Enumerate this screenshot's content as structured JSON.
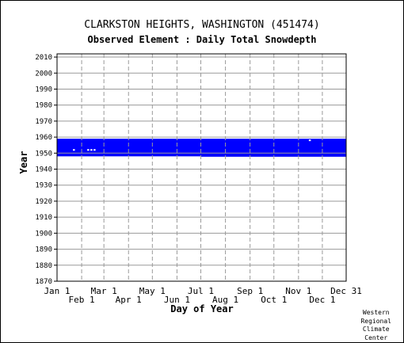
{
  "chart_data": {
    "type": "heatmap",
    "title": "CLARKSTON HEIGHTS, WASHINGTON   (451474)",
    "subtitle": "Observed Element : Daily Total Snowdepth",
    "xlabel": "Day of Year",
    "ylabel": "Year",
    "ylim": [
      1870,
      2012
    ],
    "xlim": [
      1,
      365
    ],
    "y_ticks": [
      1870,
      1880,
      1890,
      1900,
      1910,
      1920,
      1930,
      1940,
      1950,
      1960,
      1970,
      1980,
      1990,
      2000,
      2010
    ],
    "x_ticks_upper": [
      {
        "label": "Jan 1",
        "day": 1
      },
      {
        "label": "Mar 1",
        "day": 60
      },
      {
        "label": "May 1",
        "day": 121
      },
      {
        "label": "Jul 1",
        "day": 182
      },
      {
        "label": "Sep 1",
        "day": 244
      },
      {
        "label": "Nov 1",
        "day": 305
      },
      {
        "label": "Dec 31",
        "day": 365
      }
    ],
    "x_ticks_lower": [
      {
        "label": "Feb 1",
        "day": 32
      },
      {
        "label": "Apr 1",
        "day": 91
      },
      {
        "label": "Jun 1",
        "day": 152
      },
      {
        "label": "Aug 1",
        "day": 213
      },
      {
        "label": "Oct 1",
        "day": 274
      },
      {
        "label": "Dec 1",
        "day": 335
      }
    ],
    "grid": true,
    "data_color": "#0000ff",
    "observed_periods": [
      {
        "year_start": 1948.0,
        "year_end": 1959.0,
        "day_start": 1,
        "day_end": 365
      },
      {
        "year_start": 1947.7,
        "year_end": 1948.0,
        "day_start": 182,
        "day_end": 365
      }
    ],
    "missing_marks": [
      {
        "year": 1952,
        "day": 22
      },
      {
        "year": 1952,
        "day": 40
      },
      {
        "year": 1952,
        "day": 44
      },
      {
        "year": 1952,
        "day": 48
      },
      {
        "year": 1958,
        "day": 319
      }
    ]
  },
  "credit": [
    "Western",
    "Regional",
    "Climate",
    "Center"
  ]
}
